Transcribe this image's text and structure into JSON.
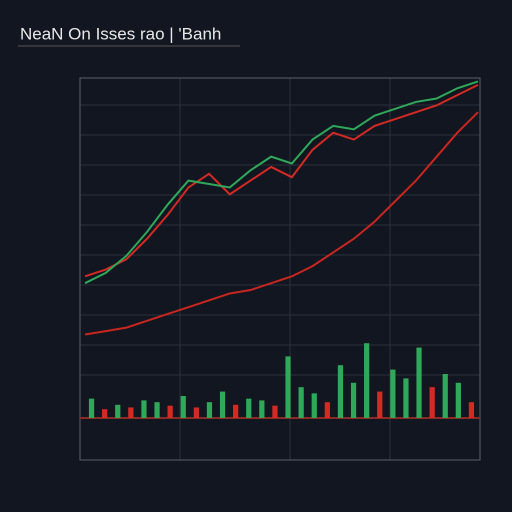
{
  "chart_data": [
    {
      "type": "line",
      "title": "NeaN On Isses rao | 'Banh",
      "categories": [
        null,
        null,
        null,
        null,
        null,
        null,
        null,
        null,
        null,
        null,
        null,
        null,
        null,
        null,
        null,
        null,
        null,
        null,
        null,
        null
      ],
      "ylim": [
        0,
        100
      ],
      "series": [
        {
          "color": "#d42a24",
          "values": [
            42,
            44,
            47,
            53,
            60,
            68,
            72,
            66,
            70,
            74,
            71,
            79,
            84,
            82,
            86,
            88,
            90,
            92,
            95,
            98
          ]
        },
        {
          "color": "#2fa85a",
          "values": [
            40,
            43,
            48,
            55,
            63,
            70,
            69,
            68,
            73,
            77,
            75,
            82,
            86,
            85,
            89,
            91,
            93,
            94,
            97,
            99
          ]
        },
        {
          "color": "#c8261f",
          "values": [
            25,
            26,
            27,
            29,
            31,
            33,
            35,
            37,
            38,
            40,
            42,
            45,
            49,
            53,
            58,
            64,
            70,
            77,
            84,
            90
          ]
        }
      ]
    },
    {
      "type": "bar",
      "categories": [
        null,
        null,
        null,
        null,
        null,
        null,
        null,
        null,
        null,
        null,
        null,
        null,
        null,
        null,
        null,
        null,
        null,
        null,
        null,
        null,
        null,
        null,
        null,
        null,
        null,
        null,
        null,
        null,
        null,
        null
      ],
      "ylim": [
        0,
        100
      ],
      "colors": [
        "#2fa85a",
        "#d42a24",
        "#2fa85a",
        "#d42a24",
        "#2fa85a",
        "#2fa85a",
        "#d42a24",
        "#2fa85a",
        "#d42a24",
        "#2fa85a",
        "#2fa85a",
        "#d42a24",
        "#2fa85a",
        "#2fa85a",
        "#d42a24",
        "#2fa85a",
        "#2fa85a",
        "#2fa85a",
        "#d42a24",
        "#2fa85a",
        "#2fa85a",
        "#2fa85a",
        "#d42a24",
        "#2fa85a",
        "#2fa85a",
        "#2fa85a",
        "#d42a24",
        "#2fa85a",
        "#2fa85a",
        "#d42a24"
      ],
      "values": [
        22,
        10,
        15,
        12,
        20,
        18,
        14,
        25,
        12,
        18,
        30,
        15,
        22,
        20,
        14,
        70,
        35,
        28,
        18,
        60,
        40,
        85,
        30,
        55,
        45,
        80,
        35,
        50,
        40,
        18
      ]
    }
  ]
}
